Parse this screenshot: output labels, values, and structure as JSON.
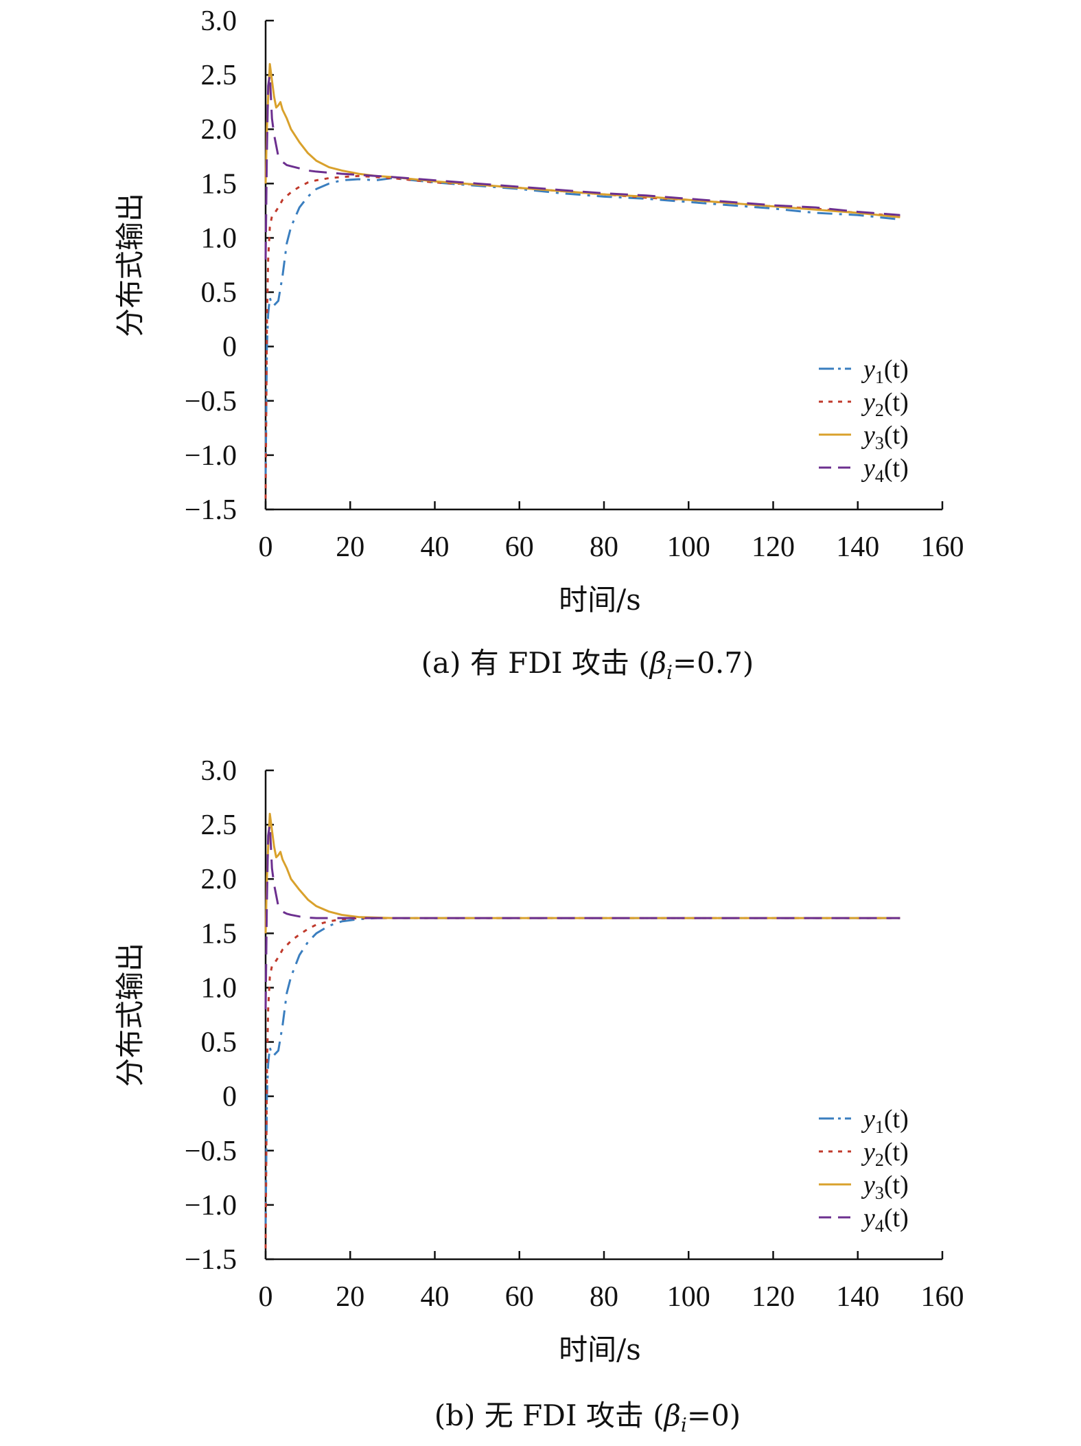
{
  "colors": {
    "y1": "#3a7ebf",
    "y2": "#c0392b",
    "y3": "#d9a12c",
    "y4": "#6c2f8f",
    "axis": "#111111"
  },
  "legend_placement": "bottom-right inside plot",
  "chart_data": [
    {
      "type": "line",
      "caption": "(a) 有 FDI 攻击 (β_i=0.7)",
      "caption_parts": {
        "before": "(a) 有 FDI 攻击 (",
        "greek": "β",
        "sub": "i",
        "after": "=0.7)"
      },
      "xlabel": "时间/s",
      "ylabel": "分布式输出",
      "xlim": [
        0,
        160
      ],
      "ylim": [
        -1.5,
        3.0
      ],
      "xticks": [
        0,
        20,
        40,
        60,
        80,
        100,
        120,
        140,
        160
      ],
      "yticks": [
        3.0,
        2.5,
        2.0,
        1.5,
        1.0,
        0.5,
        0,
        -0.5,
        -1.0,
        -1.5
      ],
      "ytick_labels": [
        "3.0",
        "2.5",
        "2.0",
        "1.5",
        "1.0",
        "0.5",
        "0",
        "−0.5",
        "−1.0",
        "−1.5"
      ],
      "xtick_labels": [
        "0",
        "20",
        "40",
        "60",
        "80",
        "100",
        "120",
        "140",
        "160"
      ],
      "grid": false,
      "series": [
        {
          "name": "y1(t)",
          "name_parts": {
            "main": "y",
            "sub": "1",
            "rest": "(t)"
          },
          "style": "dashdot",
          "color_key": "y1",
          "x": [
            0,
            0.3,
            0.6,
            1.0,
            1.5,
            2.0,
            3.0,
            4.0,
            5.0,
            6.0,
            8.0,
            10.0,
            12.0,
            15.0,
            18.0,
            22.0,
            26.0,
            30.0,
            40.0,
            50.0,
            60.0,
            70.0,
            80.0,
            90.0,
            100.0,
            110.0,
            120.0,
            130.0,
            140.0,
            150.0
          ],
          "y": [
            -1.2,
            0.0,
            0.3,
            0.45,
            0.38,
            0.38,
            0.42,
            0.65,
            0.95,
            1.1,
            1.28,
            1.38,
            1.45,
            1.5,
            1.53,
            1.54,
            1.53,
            1.55,
            1.51,
            1.48,
            1.45,
            1.41,
            1.38,
            1.36,
            1.33,
            1.3,
            1.27,
            1.23,
            1.21,
            1.17
          ]
        },
        {
          "name": "y2(t)",
          "name_parts": {
            "main": "y",
            "sub": "2",
            "rest": "(t)"
          },
          "style": "dotted",
          "color_key": "y2",
          "x": [
            0,
            0.3,
            0.6,
            1.0,
            1.5,
            2.0,
            3.0,
            4.0,
            6.0,
            8.0,
            10.0,
            12.0,
            15.0,
            18.0,
            22.0,
            26.0,
            30.0,
            40.0,
            50.0,
            60.0,
            70.0,
            80.0,
            90.0,
            100.0,
            110.0,
            120.0,
            130.0,
            140.0,
            150.0
          ],
          "y": [
            -1.4,
            0.2,
            0.8,
            1.1,
            1.2,
            1.22,
            1.28,
            1.35,
            1.42,
            1.47,
            1.51,
            1.53,
            1.55,
            1.56,
            1.57,
            1.56,
            1.55,
            1.51,
            1.49,
            1.46,
            1.43,
            1.4,
            1.37,
            1.35,
            1.32,
            1.29,
            1.27,
            1.23,
            1.2
          ]
        },
        {
          "name": "y3(t)",
          "name_parts": {
            "main": "y",
            "sub": "3",
            "rest": "(t)"
          },
          "style": "solid",
          "color_key": "y3",
          "x": [
            0,
            0.3,
            0.6,
            1.0,
            1.5,
            2.0,
            2.5,
            3.0,
            3.5,
            4.0,
            5.0,
            6.0,
            8.0,
            10.0,
            12.0,
            15.0,
            18.0,
            22.0,
            26.0,
            30.0,
            40.0,
            50.0,
            60.0,
            70.0,
            80.0,
            90.0,
            100.0,
            110.0,
            120.0,
            130.0,
            140.0,
            150.0
          ],
          "y": [
            1.5,
            2.0,
            2.3,
            2.6,
            2.45,
            2.3,
            2.2,
            2.22,
            2.25,
            2.18,
            2.1,
            2.0,
            1.88,
            1.78,
            1.71,
            1.65,
            1.62,
            1.59,
            1.57,
            1.56,
            1.52,
            1.49,
            1.46,
            1.43,
            1.4,
            1.38,
            1.35,
            1.32,
            1.29,
            1.26,
            1.23,
            1.19
          ]
        },
        {
          "name": "y4(t)",
          "name_parts": {
            "main": "y",
            "sub": "4",
            "rest": "(t)"
          },
          "style": "dashed",
          "color_key": "y4",
          "x": [
            0,
            0.3,
            0.6,
            1.0,
            1.5,
            2.0,
            2.5,
            3.0,
            3.5,
            4.0,
            5.0,
            6.0,
            8.0,
            10.0,
            12.0,
            15.0,
            18.0,
            22.0,
            26.0,
            30.0,
            40.0,
            50.0,
            60.0,
            70.0,
            80.0,
            90.0,
            100.0,
            110.0,
            120.0,
            130.0,
            140.0,
            150.0
          ],
          "y": [
            0.8,
            1.8,
            2.4,
            2.5,
            2.1,
            1.95,
            1.85,
            1.75,
            1.72,
            1.7,
            1.67,
            1.66,
            1.64,
            1.62,
            1.61,
            1.6,
            1.59,
            1.58,
            1.57,
            1.56,
            1.53,
            1.5,
            1.47,
            1.44,
            1.41,
            1.39,
            1.36,
            1.33,
            1.3,
            1.28,
            1.24,
            1.21
          ]
        }
      ]
    },
    {
      "type": "line",
      "caption": "(b) 无 FDI 攻击 (β_i=0)",
      "caption_parts": {
        "before": "(b) 无 FDI 攻击 (",
        "greek": "β",
        "sub": "i",
        "after": "=0)"
      },
      "xlabel": "时间/s",
      "ylabel": "分布式输出",
      "xlim": [
        0,
        160
      ],
      "ylim": [
        -1.5,
        3.0
      ],
      "xticks": [
        0,
        20,
        40,
        60,
        80,
        100,
        120,
        140,
        160
      ],
      "yticks": [
        3.0,
        2.5,
        2.0,
        1.5,
        1.0,
        0.5,
        0,
        -0.5,
        -1.0,
        -1.5
      ],
      "ytick_labels": [
        "3.0",
        "2.5",
        "2.0",
        "1.5",
        "1.0",
        "0.5",
        "0",
        "−0.5",
        "−1.0",
        "−1.5"
      ],
      "xtick_labels": [
        "0",
        "20",
        "40",
        "60",
        "80",
        "100",
        "120",
        "140",
        "160"
      ],
      "grid": false,
      "series": [
        {
          "name": "y1(t)",
          "name_parts": {
            "main": "y",
            "sub": "1",
            "rest": "(t)"
          },
          "style": "dashdot",
          "color_key": "y1",
          "x": [
            0,
            0.3,
            0.6,
            1.0,
            1.5,
            2.0,
            3.0,
            4.0,
            5.0,
            6.0,
            8.0,
            10.0,
            12.0,
            15.0,
            18.0,
            22.0,
            26.0,
            30.0,
            40.0,
            60.0,
            80.0,
            100.0,
            120.0,
            150.0
          ],
          "y": [
            -1.2,
            0.0,
            0.3,
            0.45,
            0.38,
            0.38,
            0.42,
            0.65,
            0.95,
            1.1,
            1.3,
            1.42,
            1.5,
            1.57,
            1.61,
            1.63,
            1.64,
            1.64,
            1.64,
            1.64,
            1.64,
            1.64,
            1.64,
            1.64
          ]
        },
        {
          "name": "y2(t)",
          "name_parts": {
            "main": "y",
            "sub": "2",
            "rest": "(t)"
          },
          "style": "dotted",
          "color_key": "y2",
          "x": [
            0,
            0.3,
            0.6,
            1.0,
            1.5,
            2.0,
            3.0,
            4.0,
            6.0,
            8.0,
            10.0,
            12.0,
            15.0,
            18.0,
            22.0,
            26.0,
            30.0,
            40.0,
            60.0,
            80.0,
            100.0,
            120.0,
            150.0
          ],
          "y": [
            -1.4,
            0.2,
            0.8,
            1.1,
            1.2,
            1.22,
            1.28,
            1.35,
            1.43,
            1.49,
            1.54,
            1.58,
            1.61,
            1.63,
            1.64,
            1.64,
            1.64,
            1.64,
            1.64,
            1.64,
            1.64,
            1.64,
            1.64
          ]
        },
        {
          "name": "y3(t)",
          "name_parts": {
            "main": "y",
            "sub": "3",
            "rest": "(t)"
          },
          "style": "solid",
          "color_key": "y3",
          "x": [
            0,
            0.3,
            0.6,
            1.0,
            1.5,
            2.0,
            2.5,
            3.0,
            3.5,
            4.0,
            5.0,
            6.0,
            8.0,
            10.0,
            12.0,
            15.0,
            18.0,
            22.0,
            26.0,
            30.0,
            40.0,
            60.0,
            80.0,
            100.0,
            120.0,
            150.0
          ],
          "y": [
            1.5,
            2.0,
            2.3,
            2.6,
            2.45,
            2.3,
            2.2,
            2.22,
            2.25,
            2.18,
            2.1,
            2.0,
            1.9,
            1.81,
            1.75,
            1.7,
            1.67,
            1.65,
            1.645,
            1.64,
            1.64,
            1.64,
            1.64,
            1.64,
            1.64,
            1.64
          ]
        },
        {
          "name": "y4(t)",
          "name_parts": {
            "main": "y",
            "sub": "4",
            "rest": "(t)"
          },
          "style": "dashed",
          "color_key": "y4",
          "x": [
            0,
            0.3,
            0.6,
            1.0,
            1.5,
            2.0,
            2.5,
            3.0,
            3.5,
            4.0,
            5.0,
            6.0,
            8.0,
            10.0,
            12.0,
            15.0,
            20.0,
            30.0,
            60.0,
            100.0,
            150.0
          ],
          "y": [
            0.8,
            1.8,
            2.4,
            2.5,
            2.1,
            1.95,
            1.85,
            1.75,
            1.72,
            1.7,
            1.68,
            1.67,
            1.655,
            1.645,
            1.64,
            1.64,
            1.64,
            1.64,
            1.64,
            1.64,
            1.64
          ]
        }
      ]
    }
  ]
}
